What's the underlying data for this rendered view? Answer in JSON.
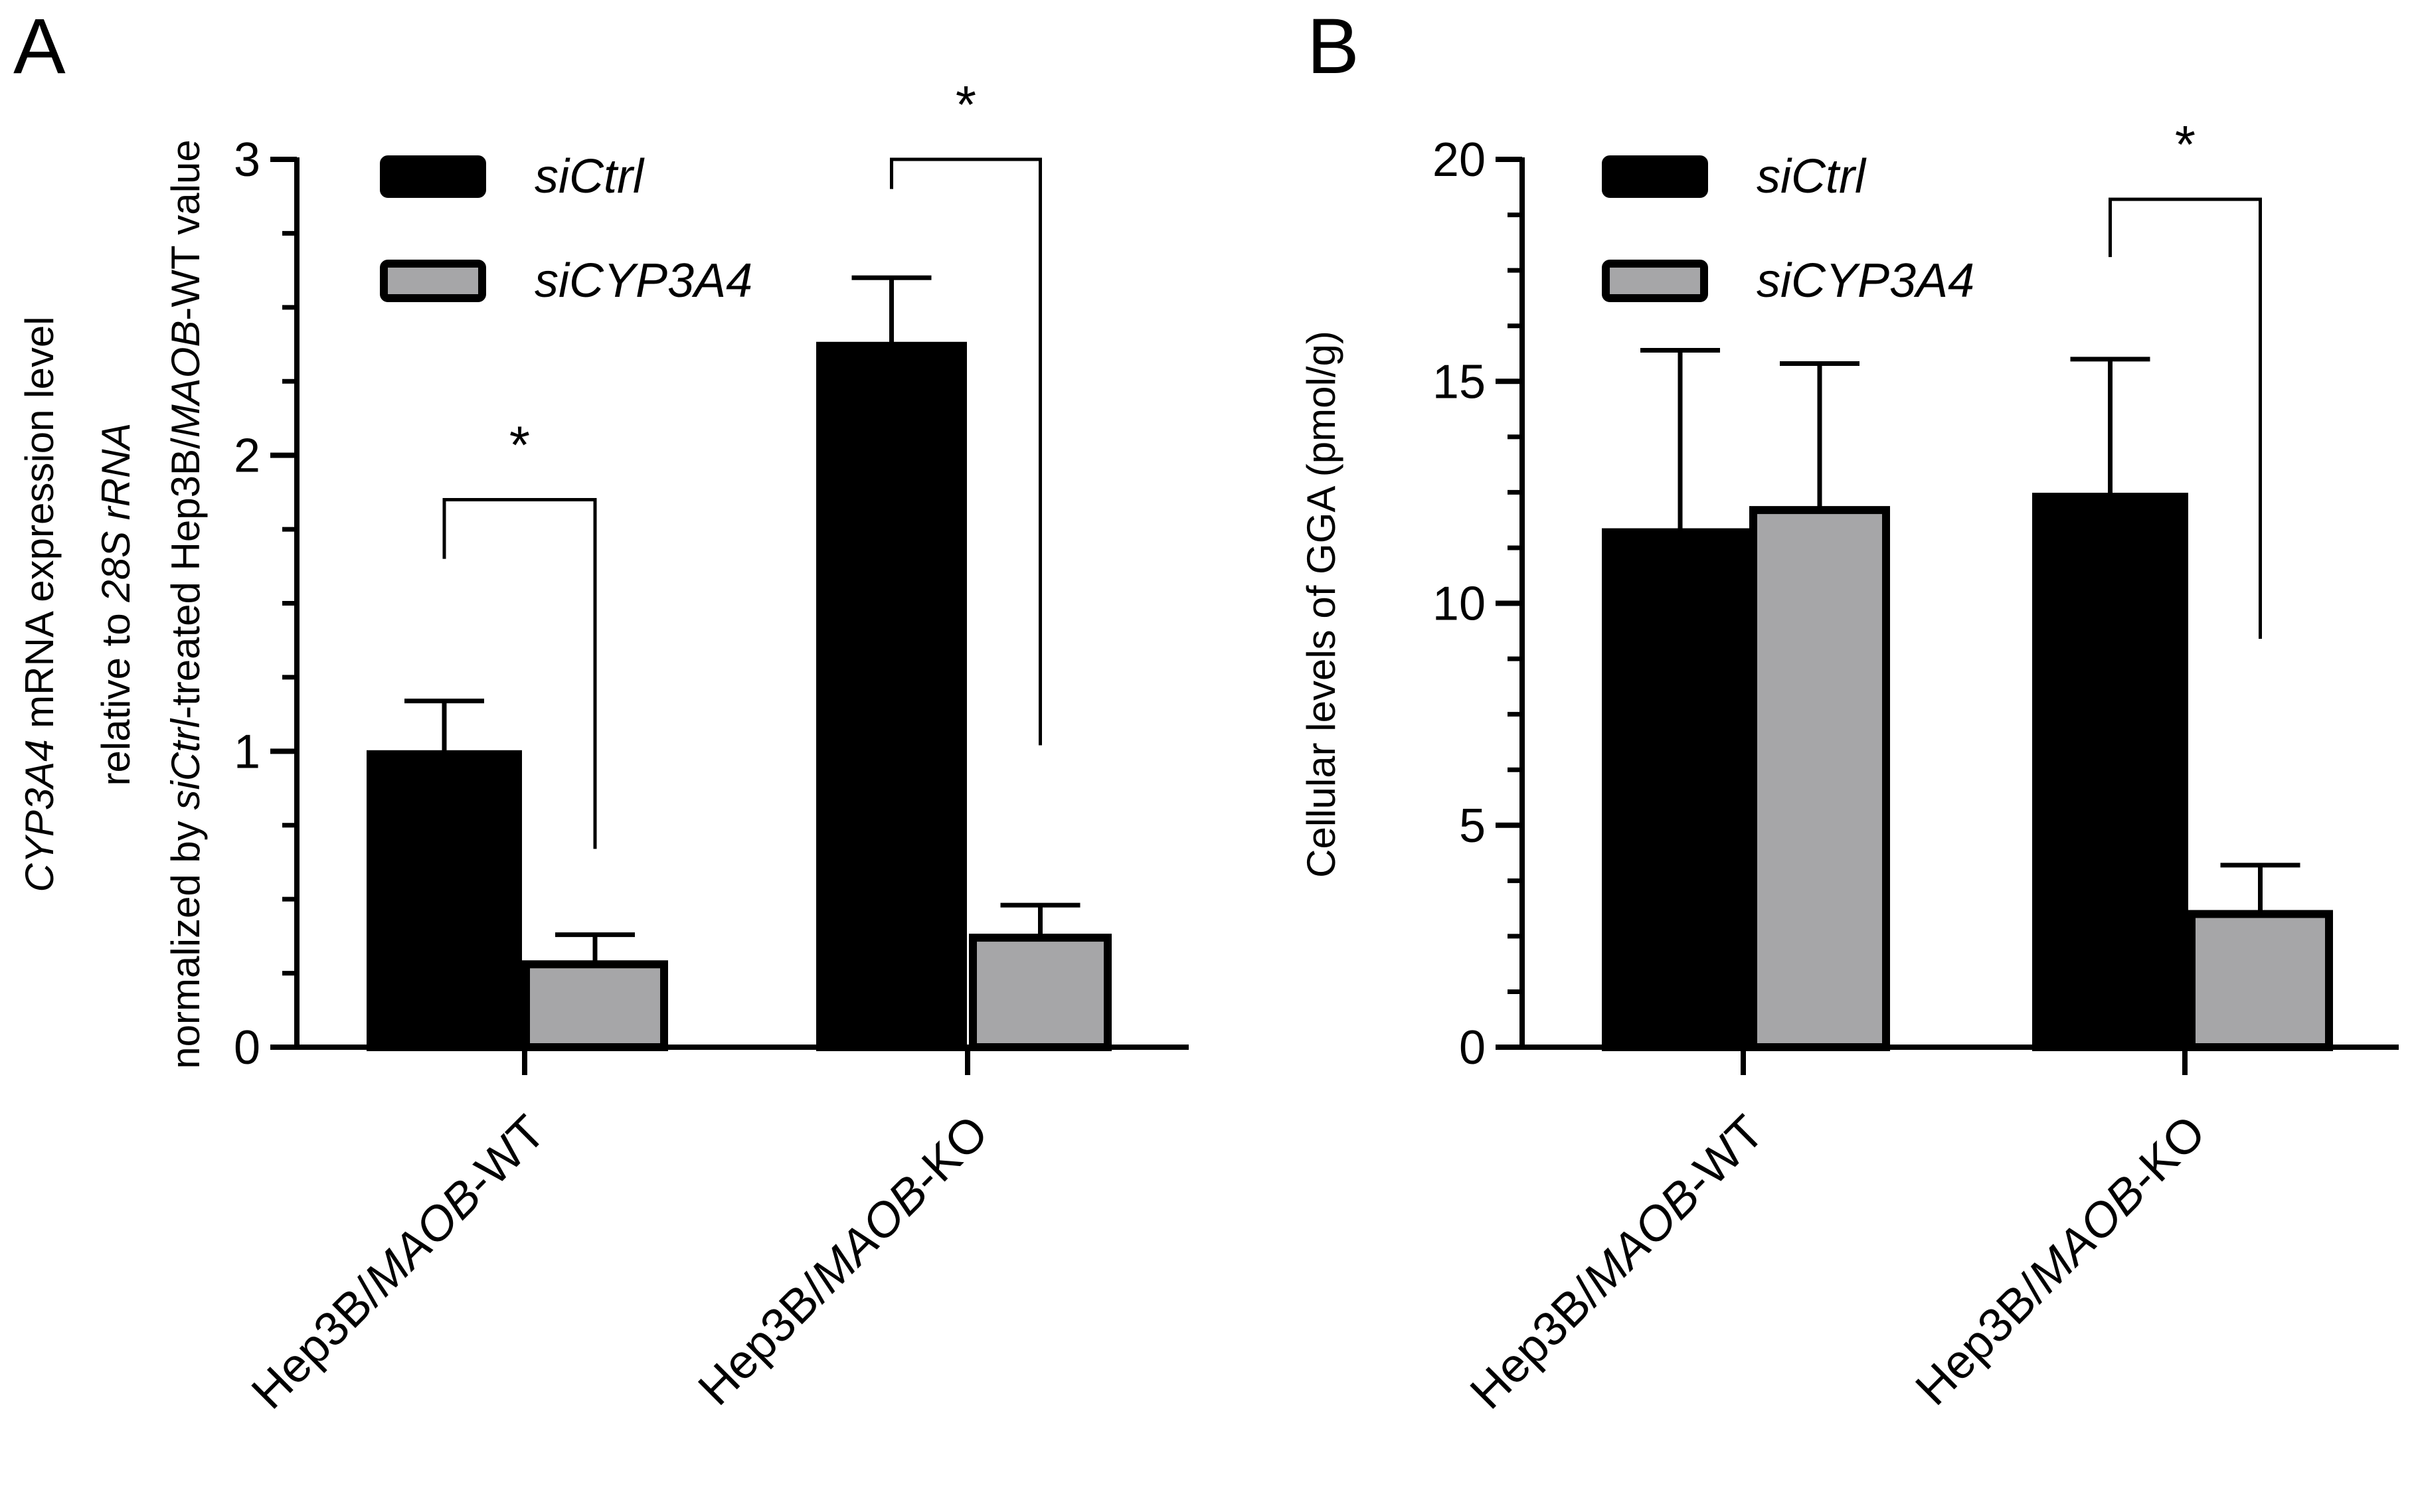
{
  "colors": {
    "siCtrl": "#000000",
    "siCYP3A4": "#a6a6a8",
    "axis": "#000000"
  },
  "chart_data": [
    {
      "panel": "A",
      "type": "bar",
      "categories": [
        {
          "prefix": "Hep3B/",
          "italic": "MAOB",
          "suffix": "-WT"
        },
        {
          "prefix": "Hep3B/",
          "italic": "MAOB",
          "suffix": "-KO"
        }
      ],
      "series": [
        {
          "name": "siCtrl",
          "values": [
            0.99,
            2.37
          ],
          "errors": [
            0.18,
            0.23
          ]
        },
        {
          "name": "siCYP3A4",
          "values": [
            0.28,
            0.37
          ],
          "errors": [
            0.1,
            0.11
          ]
        }
      ],
      "ylim": [
        0,
        3
      ],
      "yticks": [
        0,
        1,
        2,
        3
      ],
      "ylabel_lines": [
        [
          {
            "t": "CYP3A4",
            "i": true
          },
          {
            "t": " mRNA expression level",
            "i": false
          }
        ],
        [
          {
            "t": "relative to ",
            "i": false
          },
          {
            "t": "28S rRNA",
            "i": true
          }
        ],
        [
          {
            "t": "normalized by ",
            "i": false
          },
          {
            "t": "siCtrl",
            "i": true
          },
          {
            "t": "-treated Hep3B/",
            "i": false
          },
          {
            "t": "MAOB",
            "i": true
          },
          {
            "t": "-WT value",
            "i": false
          }
        ]
      ],
      "legend": [
        "siCtrl",
        "siCYP3A4"
      ],
      "legend_position": "top-left",
      "significance": [
        {
          "category": 0,
          "label": "*",
          "ctrl_end": 1.65,
          "bracket": 1.85,
          "treat_end": 0.67
        },
        {
          "category": 1,
          "label": "*",
          "ctrl_end": 2.9,
          "bracket": 3.0,
          "treat_end": 1.02
        }
      ]
    },
    {
      "panel": "B",
      "type": "bar",
      "categories": [
        {
          "prefix": "Hep3B/",
          "italic": "MAOB",
          "suffix": "-WT"
        },
        {
          "prefix": "Hep3B/",
          "italic": "MAOB",
          "suffix": "-KO"
        }
      ],
      "series": [
        {
          "name": "siCtrl",
          "values": [
            11.6,
            12.4
          ],
          "errors": [
            4.1,
            3.1
          ]
        },
        {
          "name": "siCYP3A4",
          "values": [
            12.1,
            3.0
          ],
          "errors": [
            3.3,
            1.1
          ]
        }
      ],
      "ylim": [
        0,
        20
      ],
      "yticks": [
        0,
        5,
        10,
        15,
        20
      ],
      "ylabel_lines": [
        [
          {
            "t": "Cellular levels of GGA (pmol/g)",
            "i": false
          }
        ]
      ],
      "legend": [
        "siCtrl",
        "siCYP3A4"
      ],
      "legend_position": "top-left",
      "significance": [
        {
          "category": 1,
          "label": "*",
          "ctrl_end": 17.8,
          "bracket": 19.1,
          "treat_end": 9.2
        }
      ]
    }
  ]
}
